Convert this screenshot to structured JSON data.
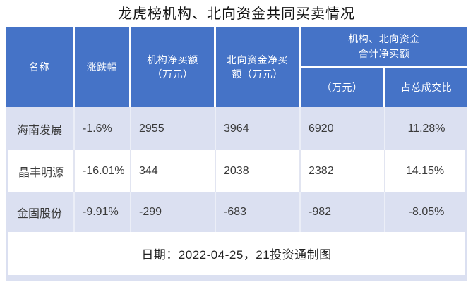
{
  "title": "龙虎榜机构、北向资金共同买卖情况",
  "colors": {
    "header_blue": "#4573c7",
    "row_lavender": "#dbe0f1",
    "row_white": "#ffffff",
    "header_text": "#ffffff",
    "body_text": "#3a3a3a"
  },
  "table": {
    "headers": {
      "name": "名称",
      "change": "涨跌幅",
      "inst_net": "机构净买额\n（万元）",
      "north_net": "北向资金净买\n额（万元）",
      "combined_group": "机构、北向资金\n合计净买额",
      "combined_amount": "（万元）",
      "combined_ratio": "占总成交比"
    },
    "rows": [
      {
        "cells": [
          "海南发展",
          "-1.6%",
          "2955",
          "3964",
          "6920",
          "11.28%"
        ]
      },
      {
        "cells": [
          "晶丰明源",
          "-16.01%",
          "344",
          "2038",
          "2382",
          "14.15%"
        ]
      },
      {
        "cells": [
          "金固股份",
          "-9.91%",
          "-299",
          "-683",
          "-982",
          "-8.05%"
        ]
      }
    ]
  },
  "footer": {
    "note": "日期：2022-04-25，21投资通制图"
  },
  "chart_data": {
    "type": "table",
    "title": "龙虎榜机构、北向资金共同买卖情况",
    "columns": [
      "名称",
      "涨跌幅",
      "机构净买额（万元）",
      "北向资金净买额（万元）",
      "机构、北向资金合计净买额（万元）",
      "机构、北向资金合计净买额占总成交比"
    ],
    "rows": [
      [
        "海南发展",
        "-1.6%",
        2955,
        3964,
        6920,
        "11.28%"
      ],
      [
        "晶丰明源",
        "-16.01%",
        344,
        2038,
        2382,
        "14.15%"
      ],
      [
        "金固股份",
        "-9.91%",
        -299,
        -683,
        -982,
        "-8.05%"
      ]
    ],
    "source_note": "日期：2022-04-25，21投资通制图"
  }
}
